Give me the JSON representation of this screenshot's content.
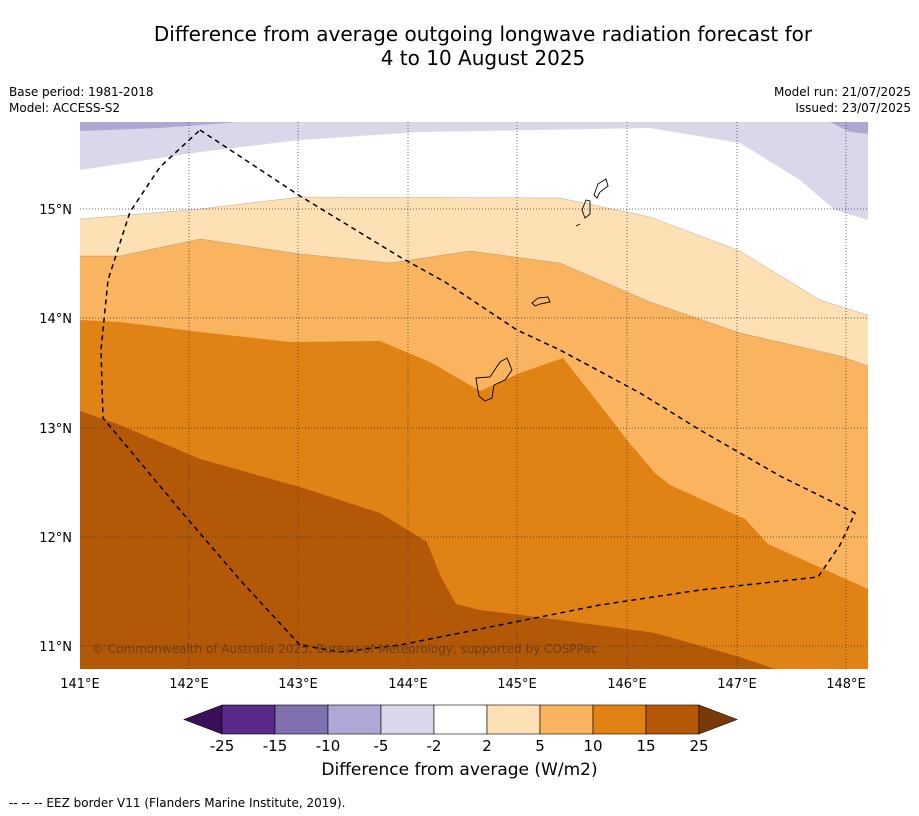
{
  "title": {
    "line1": "Difference from average outgoing longwave radiation forecast for",
    "line2": "4 to 10 August 2025"
  },
  "meta": {
    "base_period": "Base period: 1981-2018",
    "model": "Model: ACCESS-S2",
    "model_run": "Model run: 21/07/2025",
    "issued": "Issued: 23/07/2025"
  },
  "map": {
    "copyright": "© Commonwealth of Australia 2025, Bureau of Meteorology, supported by COSPPac",
    "lon_ticks": [
      "141°E",
      "142°E",
      "143°E",
      "144°E",
      "145°E",
      "146°E",
      "147°E",
      "148°E"
    ],
    "lat_ticks": [
      "15°N",
      "14°N",
      "13°N",
      "12°N",
      "11°N"
    ],
    "lon_range": [
      141,
      148.2
    ],
    "lat_range": [
      10.8,
      15.8
    ]
  },
  "colorbar": {
    "label": "Difference from average (W/m2)",
    "ticks": [
      "-25",
      "-15",
      "-10",
      "-5",
      "-2",
      "2",
      "5",
      "10",
      "15",
      "25"
    ],
    "colors": [
      "#5a2a8a",
      "#8070b0",
      "#b0a8d4",
      "#d8d8ea",
      "#ffffff",
      "#fde0b4",
      "#fab460",
      "#e08214",
      "#b35806"
    ],
    "extend_low_color": "#3b0f5a",
    "extend_high_color": "#7a3a08"
  },
  "footnote": "--  --  -- EEZ border V11 (Flanders Marine Institute, 2019)."
}
